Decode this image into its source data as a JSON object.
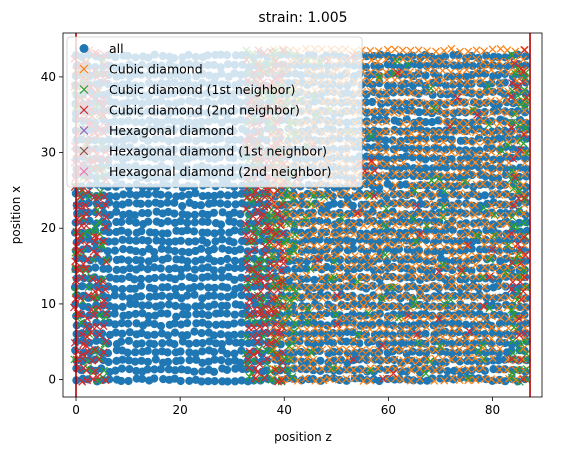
{
  "chart_data": {
    "type": "scatter",
    "title": "strain: 1.005",
    "xlabel": "position z",
    "ylabel": "position x",
    "xlim": [
      -2.5,
      89.5
    ],
    "ylim": [
      -2.3,
      45.8
    ],
    "xticks": [
      0,
      20,
      40,
      60,
      80
    ],
    "yticks": [
      0,
      10,
      20,
      30,
      40
    ],
    "grid": false,
    "legend_position": "upper-left",
    "vertical_lines": [
      {
        "x": 0,
        "color": "#b30000"
      },
      {
        "x": 87.2,
        "color": "#b30000"
      }
    ],
    "series": [
      {
        "name": "all",
        "marker": "circle",
        "color": "#1f77b4",
        "x_range": [
          0,
          87.2
        ],
        "y_range": [
          0,
          43.6
        ]
      },
      {
        "name": "Cubic diamond",
        "marker": "x",
        "color": "#ff7f0e",
        "x_range": [
          38,
          87
        ],
        "y_range": [
          0,
          43.6
        ]
      },
      {
        "name": "Cubic diamond (1st neighbor)",
        "marker": "x",
        "color": "#2ca02c",
        "x_range": [
          0,
          87
        ],
        "y_range": [
          0,
          43.6
        ]
      },
      {
        "name": "Cubic diamond (2nd neighbor)",
        "marker": "x",
        "color": "#d62728",
        "x_range": [
          0,
          87
        ],
        "y_range": [
          0,
          43.6
        ]
      },
      {
        "name": "Hexagonal diamond",
        "marker": "x",
        "color": "#9467bd"
      },
      {
        "name": "Hexagonal diamond (1st neighbor)",
        "marker": "x",
        "color": "#8c564b"
      },
      {
        "name": "Hexagonal diamond (2nd neighbor)",
        "marker": "x",
        "color": "#e377c2"
      }
    ]
  }
}
